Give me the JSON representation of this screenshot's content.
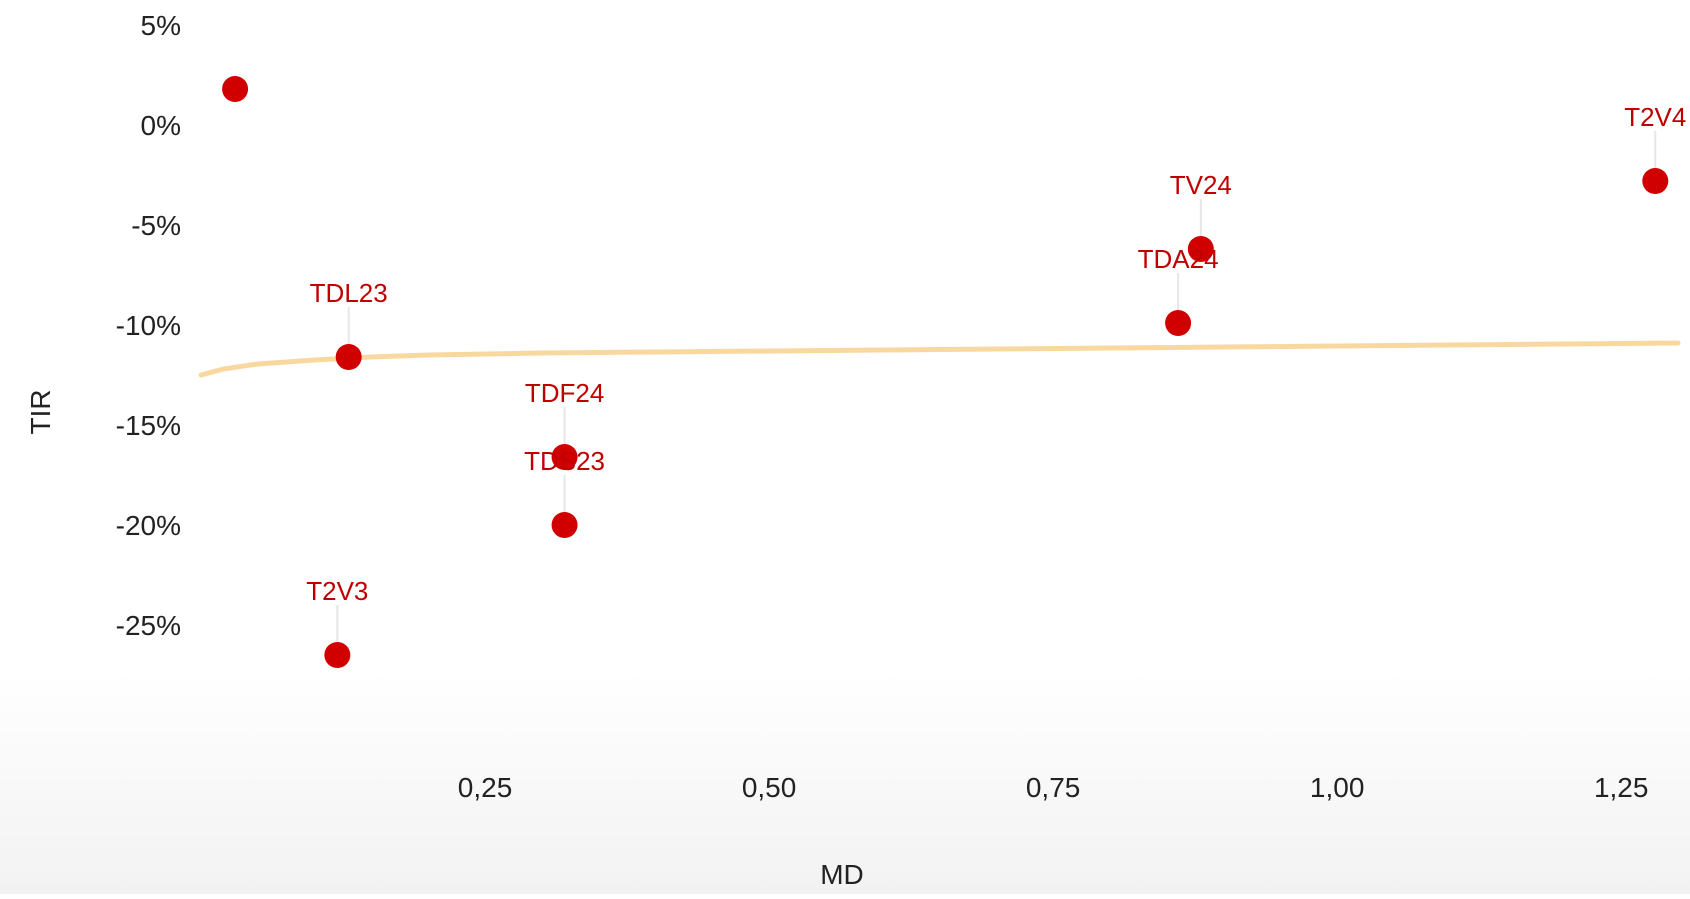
{
  "chart_data": {
    "type": "scatter",
    "title": "",
    "xlabel": "MD",
    "ylabel": "TIR",
    "xlim": [
      0.0,
      1.3
    ],
    "ylim": [
      -30,
      5
    ],
    "x_ticks": [
      {
        "value": 0.25,
        "label": "0,25"
      },
      {
        "value": 0.5,
        "label": "0,50"
      },
      {
        "value": 0.75,
        "label": "0,75"
      },
      {
        "value": 1.0,
        "label": "1,00"
      },
      {
        "value": 1.25,
        "label": "1,25"
      }
    ],
    "y_ticks": [
      {
        "value": 5,
        "label": "5%"
      },
      {
        "value": 0,
        "label": "0%"
      },
      {
        "value": -5,
        "label": "-5%"
      },
      {
        "value": -10,
        "label": "-10%"
      },
      {
        "value": -15,
        "label": "-15%"
      },
      {
        "value": -20,
        "label": "-20%"
      },
      {
        "value": -25,
        "label": "-25%"
      }
    ],
    "grid": false,
    "legend": "none",
    "point_color": "#d00000",
    "label_color": "#c00000",
    "trend_color": "#f9d8a0",
    "points": [
      {
        "label": "",
        "x": 0.03,
        "y": 1.8
      },
      {
        "label": "TDL23",
        "x": 0.13,
        "y": -11.6
      },
      {
        "label": "T2V3",
        "x": 0.12,
        "y": -26.5
      },
      {
        "label": "TDF24",
        "x": 0.32,
        "y": -16.6
      },
      {
        "label": "TDS23",
        "x": 0.32,
        "y": -20.0
      },
      {
        "label": "TV24",
        "x": 0.88,
        "y": -6.2
      },
      {
        "label": "TDA24",
        "x": 0.86,
        "y": -9.9
      },
      {
        "label": "T2V4",
        "x": 1.28,
        "y": -2.8
      }
    ],
    "trendline": {
      "x": [
        0.0,
        0.02,
        0.05,
        0.1,
        0.15,
        0.2,
        0.3,
        0.4,
        0.5,
        0.6,
        0.7,
        0.8,
        0.9,
        1.0,
        1.1,
        1.2,
        1.3
      ],
      "y": [
        -12.5,
        -12.2,
        -11.95,
        -11.75,
        -11.6,
        -11.5,
        -11.4,
        -11.35,
        -11.3,
        -11.25,
        -11.2,
        -11.15,
        -11.1,
        -11.05,
        -11.0,
        -10.95,
        -10.9
      ]
    }
  }
}
